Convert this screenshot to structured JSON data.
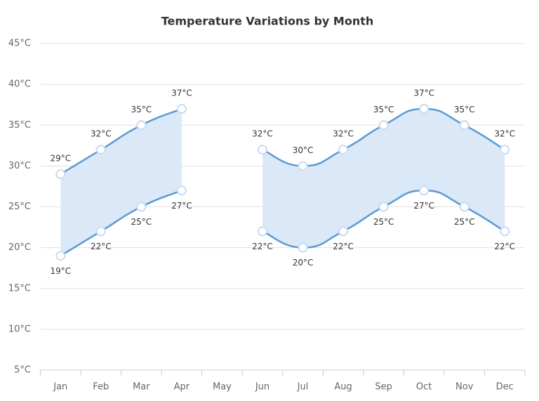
{
  "chart_data": {
    "type": "rangearea",
    "title": "Temperature Variations by Month",
    "categories": [
      "Jan",
      "Feb",
      "Mar",
      "Apr",
      "May",
      "Jun",
      "Jul",
      "Aug",
      "Sep",
      "Oct",
      "Nov",
      "Dec"
    ],
    "fill_color": "#dbe8f8",
    "series": [
      {
        "color": "#5b9bd5",
        "values": [
          29,
          32,
          35,
          37,
          null,
          32,
          30,
          32,
          35,
          37,
          35,
          32
        ],
        "value_labels": [
          "29°C",
          "32°C",
          "35°C",
          "37°C",
          null,
          "32°C",
          "30°C",
          "32°C",
          "35°C",
          "37°C",
          "35°C",
          "32°C"
        ]
      },
      {
        "color": "#5b9bd5",
        "values": [
          19,
          22,
          25,
          27,
          null,
          22,
          20,
          22,
          25,
          27,
          25,
          22
        ],
        "value_labels": [
          "19°C",
          "22°C",
          "25°C",
          "27°C",
          null,
          "22°C",
          "20°C",
          "22°C",
          "25°C",
          "27°C",
          "25°C",
          "22°C"
        ]
      }
    ],
    "ylim": [
      5,
      45
    ],
    "yticks": [
      {
        "value": 5,
        "label": "5°C"
      },
      {
        "value": 10,
        "label": "10°C"
      },
      {
        "value": 15,
        "label": "15°C"
      },
      {
        "value": 20,
        "label": "20°C"
      },
      {
        "value": 25,
        "label": "25°C"
      },
      {
        "value": 30,
        "label": "30°C"
      },
      {
        "value": 35,
        "label": "35°C"
      },
      {
        "value": 40,
        "label": "40°C"
      },
      {
        "value": 45,
        "label": "45°C"
      }
    ],
    "grid": true
  }
}
